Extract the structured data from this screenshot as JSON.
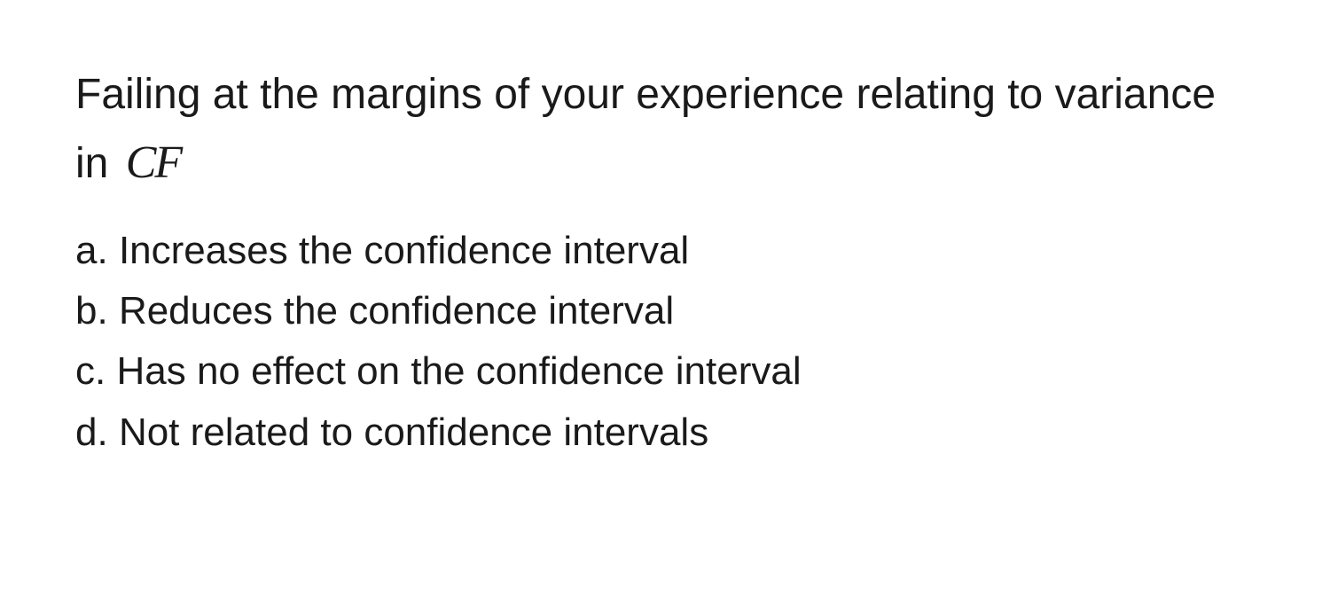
{
  "question": {
    "stem_part1": "Failing at the margins of your experience relating to variance in ",
    "math_variable": "CF",
    "text_color": "#1a1a1a",
    "background_color": "#ffffff",
    "stem_fontsize": 48,
    "option_fontsize": 44
  },
  "options": {
    "a": {
      "label": "a.",
      "text": "Increases the confidence interval"
    },
    "b": {
      "label": "b.",
      "text": "Reduces the confidence interval"
    },
    "c": {
      "label": "c.",
      "text": "Has no effect on the confidence interval"
    },
    "d": {
      "label": "d.",
      "text": "Not related to confidence intervals"
    }
  }
}
